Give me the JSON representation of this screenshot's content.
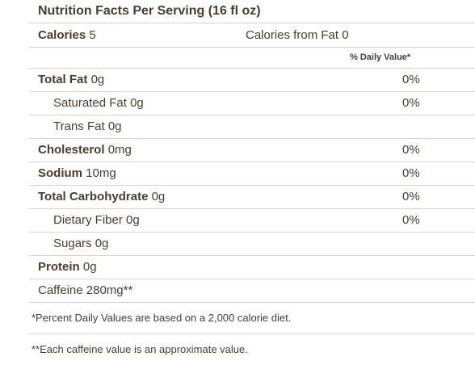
{
  "title": "Nutrition Facts Per Serving (16 fl oz)",
  "calories": {
    "label": "Calories",
    "value": "5",
    "from_fat_label": "Calories from Fat",
    "from_fat_value": "0"
  },
  "daily_value_header": "% Daily Value*",
  "nutrients": [
    {
      "name": "Total Fat",
      "amount": "0g",
      "dv": "0%"
    },
    {
      "name": "Saturated Fat",
      "amount": "0g",
      "dv": "0%"
    },
    {
      "name": "Trans Fat",
      "amount": "0g",
      "dv": ""
    },
    {
      "name": "Cholesterol",
      "amount": "0mg",
      "dv": "0%"
    },
    {
      "name": "Sodium",
      "amount": "10mg",
      "dv": "0%"
    },
    {
      "name": "Total Carbohydrate",
      "amount": "0g",
      "dv": "0%"
    },
    {
      "name": "Dietary Fiber",
      "amount": "0g",
      "dv": "0%"
    },
    {
      "name": "Sugars",
      "amount": "0g",
      "dv": ""
    },
    {
      "name": "Protein",
      "amount": "0g",
      "dv": ""
    },
    {
      "name": "Caffeine",
      "amount": "280mg**",
      "dv": ""
    }
  ],
  "footnotes": {
    "daily_values": "*Percent Daily Values are based on a 2,000 calorie diet.",
    "caffeine": "**Each caffeine value is an approximate value."
  }
}
